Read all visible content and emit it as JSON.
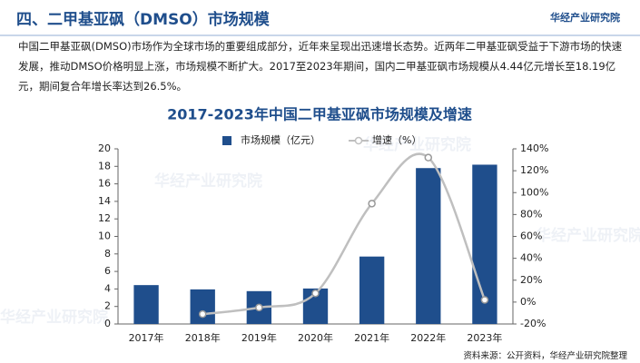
{
  "header": {
    "title": "四、二甲基亚砜（DMSO）市场规模",
    "logo": "华经产业研究院"
  },
  "paragraph": "中国二甲基亚砜(DMSO)市场作为全球市场的重要组成部分，近年来呈现出迅速增长态势。近两年二甲基亚砜受益于下游市场的快速发展，推动DMSO价格明显上涨，市场规模不断扩大。2017至2023年期间，国内二甲基亚砜市场规模从4.44亿元增长至18.19亿元，期间复合年增长率达到26.5%。",
  "watermark": "华经产业研究院",
  "source": "资料来源：公开资料，华经产业研究院整理",
  "chart_data": {
    "type": "bar-line",
    "title": "2017-2023年中国二甲基亚砜市场规模及增速",
    "categories": [
      "2017年",
      "2018年",
      "2019年",
      "2020年",
      "2021年",
      "2022年",
      "2023年"
    ],
    "series": [
      {
        "name": "市场规模（亿元）",
        "type": "bar",
        "color": "#1f4e8c",
        "values": [
          4.44,
          3.95,
          3.75,
          4.05,
          7.7,
          17.8,
          18.19
        ]
      },
      {
        "name": "增速（%）",
        "type": "line",
        "axis": "y2",
        "color": "#bfbfbf",
        "values": [
          null,
          -11,
          -5,
          8,
          90,
          132,
          2
        ]
      }
    ],
    "ylim": [
      0,
      20
    ],
    "yticks": [
      0,
      2,
      4,
      6,
      8,
      10,
      12,
      14,
      16,
      18,
      20
    ],
    "y2lim": [
      -20,
      140
    ],
    "y2ticks": [
      {
        "value": -20,
        "label": "-20%"
      },
      {
        "value": 0,
        "label": "0%"
      },
      {
        "value": 20,
        "label": "20%"
      },
      {
        "value": 40,
        "label": "40%"
      },
      {
        "value": 60,
        "label": "60%"
      },
      {
        "value": 80,
        "label": "80%"
      },
      {
        "value": 100,
        "label": "100%"
      },
      {
        "value": 120,
        "label": "120%"
      },
      {
        "value": 140,
        "label": "140%"
      }
    ]
  }
}
